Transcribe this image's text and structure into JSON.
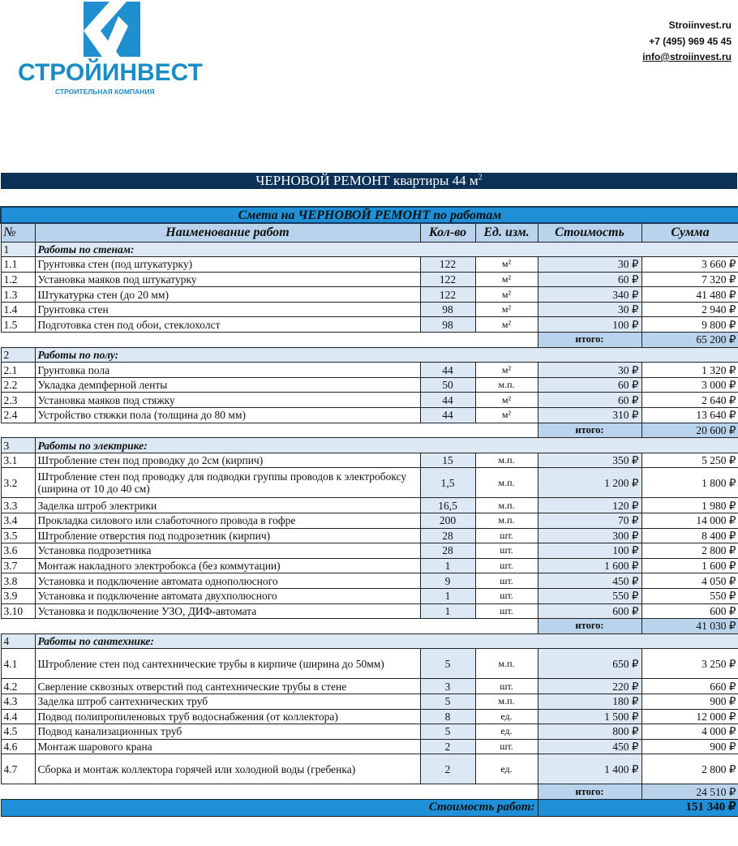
{
  "logo": {
    "name": "СТРОЙИНВЕСТ",
    "tagline": "СТРОИТЕЛЬНАЯ КОМПАНИЯ",
    "color": "#1b8cc4"
  },
  "contacts": {
    "site": "Stroiinvest.ru",
    "phone": "+7 (495) 969 45 45",
    "email": "info@stroiinvest.ru"
  },
  "title": {
    "text": "ЧЕРНОВОЙ РЕМОНТ квартиры 44 м",
    "sup": "2"
  },
  "table": {
    "caption": "Смета на ЧЕРНОВОЙ РЕМОНТ по работам",
    "headers": [
      "№",
      "Наименование работ",
      "Кол-во",
      "Ед. изм.",
      "Стоимость",
      "Сумма"
    ],
    "subtotal_label": "итого:",
    "sections": [
      {
        "num": "1",
        "title": "Работы по стенам:",
        "subtotal": "65 200 ₽",
        "rows": [
          [
            "1.1",
            "Грунтовка стен (под штукатурку)",
            "122",
            "м²",
            "30 ₽",
            "3 660 ₽"
          ],
          [
            "1.2",
            "Установка маяков под штукатурку",
            "122",
            "м²",
            "60 ₽",
            "7 320 ₽"
          ],
          [
            "1.3",
            "Штукатурка стен (до 20 мм)",
            "122",
            "м²",
            "340 ₽",
            "41 480 ₽"
          ],
          [
            "1.4",
            "Грунтовка стен",
            "98",
            "м²",
            "30 ₽",
            "2 940 ₽"
          ],
          [
            "1.5",
            "Подготовка стен под обои, стеклохолст",
            "98",
            "м²",
            "100 ₽",
            "9 800 ₽"
          ]
        ]
      },
      {
        "num": "2",
        "title": "Работы по полу:",
        "subtotal": "20 600 ₽",
        "rows": [
          [
            "2.1",
            "Грунтовка пола",
            "44",
            "м²",
            "30 ₽",
            "1 320 ₽"
          ],
          [
            "2.2",
            "Укладка демпферной ленты",
            "50",
            "м.п.",
            "60 ₽",
            "3 000 ₽"
          ],
          [
            "2.3",
            "Установка маяков под стяжку",
            "44",
            "м²",
            "60 ₽",
            "2 640 ₽"
          ],
          [
            "2.4",
            "Устройство стяжки пола (толщина до 80 мм)",
            "44",
            "м²",
            "310 ₽",
            "13 640 ₽"
          ]
        ]
      },
      {
        "num": "3",
        "title": "Работы по электрике:",
        "subtotal": "41 030 ₽",
        "rows": [
          [
            "3.1",
            "Штробление стен под проводку до 2см (кирпич)",
            "15",
            "м.п.",
            "350 ₽",
            "5 250 ₽"
          ],
          [
            "3.2",
            "Штробление стен под проводку для подводки группы проводов к электробоксу (ширина от 10 до 40 см)",
            "1,5",
            "м.п.",
            "1 200 ₽",
            "1 800 ₽"
          ],
          [
            "3.3",
            "Заделка штроб электрики",
            "16,5",
            "м.п.",
            "120 ₽",
            "1 980 ₽"
          ],
          [
            "3.4",
            "Прокладка силового или слаботочного провода в гофре",
            "200",
            "м.п.",
            "70 ₽",
            "14 000 ₽"
          ],
          [
            "3.5",
            "Штробление отверстия под подрозетник (кирпич)",
            "28",
            "шт.",
            "300 ₽",
            "8 400 ₽"
          ],
          [
            "3.6",
            "Установка подрозетника",
            "28",
            "шт.",
            "100 ₽",
            "2 800 ₽"
          ],
          [
            "3.7",
            "Монтаж накладного электробокса (без коммутации)",
            "1",
            "шт.",
            "1 600 ₽",
            "1 600 ₽"
          ],
          [
            "3.8",
            "Установка и подключение автомата однополюсного",
            "9",
            "шт.",
            "450 ₽",
            "4 050 ₽"
          ],
          [
            "3.9",
            "Установка и подключение автомата двухполюсного",
            "1",
            "шт.",
            "550 ₽",
            "550 ₽"
          ],
          [
            "3.10",
            "Установка и подключение УЗО, ДИФ-автомата",
            "1",
            "шт.",
            "600 ₽",
            "600 ₽"
          ]
        ]
      },
      {
        "num": "4",
        "title": "Работы по сантехнике:",
        "subtotal": "24 510 ₽",
        "rows": [
          [
            "4.1",
            "Штробление стен под сантехнические трубы в кирпиче (ширина до 50мм)",
            "5",
            "м.п.",
            "650 ₽",
            "3 250 ₽"
          ],
          [
            "4.2",
            "Сверление сквозных отверстий под сантехнические трубы в стене",
            "3",
            "шт.",
            "220 ₽",
            "660 ₽"
          ],
          [
            "4.3",
            "Заделка штроб сантехнических труб",
            "5",
            "м.п.",
            "180 ₽",
            "900 ₽"
          ],
          [
            "4.4",
            "Подвод полипропиленовых труб водоснабжения (от коллектора)",
            "8",
            "ед.",
            "1 500 ₽",
            "12 000 ₽"
          ],
          [
            "4.5",
            "Подвод канализационных труб",
            "5",
            "ед.",
            "800 ₽",
            "4 000 ₽"
          ],
          [
            "4.6",
            "Монтаж шарового крана",
            "2",
            "шт.",
            "450 ₽",
            "900 ₽"
          ],
          [
            "4.7",
            "Сборка и монтаж коллектора горячей или холодной воды (гребенка)",
            "2",
            "ед.",
            "1 400 ₽",
            "2 800 ₽"
          ]
        ]
      }
    ],
    "total_label": "Стоимость работ:",
    "total": "151 340 ₽"
  }
}
